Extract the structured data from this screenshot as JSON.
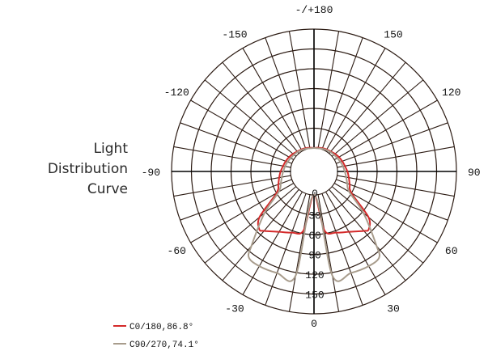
{
  "side_label": [
    "Light",
    "Distribution",
    "Curve"
  ],
  "chart_data": {
    "type": "polar-line",
    "title": "",
    "angle_labels": [
      {
        "angle": 180,
        "text": "-/+180"
      },
      {
        "angle": -150,
        "text": "-150"
      },
      {
        "angle": 150,
        "text": "150"
      },
      {
        "angle": -120,
        "text": "-120"
      },
      {
        "angle": 120,
        "text": "120"
      },
      {
        "angle": -90,
        "text": "-90"
      },
      {
        "angle": 90,
        "text": "90"
      },
      {
        "angle": -60,
        "text": "-60"
      },
      {
        "angle": 60,
        "text": "60"
      },
      {
        "angle": -30,
        "text": "-30"
      },
      {
        "angle": 30,
        "text": "30"
      },
      {
        "angle": 0,
        "text": "0"
      }
    ],
    "radial_ticks": [
      0,
      30,
      60,
      90,
      120,
      150
    ],
    "rlim": [
      0,
      180
    ],
    "spoke_step_deg": 10,
    "grid": true,
    "series": [
      {
        "name": "C0/180,86.8°",
        "color": "#d42a2a",
        "angles": [
          0,
          10,
          20,
          30,
          40,
          43.4,
          50,
          60,
          70,
          80,
          90,
          100,
          110,
          120,
          130,
          140,
          150,
          160,
          170,
          180
        ],
        "values": [
          0,
          55,
          63,
          70,
          82,
          85,
          72,
          30,
          22,
          18,
          15,
          12,
          10,
          8,
          6,
          4,
          3,
          2,
          1,
          0
        ],
        "symmetric": true
      },
      {
        "name": "C90/270,74.1°",
        "color": "#a89c8c",
        "angles": [
          0,
          10,
          20,
          30,
          37,
          40,
          50,
          60,
          70,
          80,
          90,
          100,
          110,
          120,
          130,
          140,
          150,
          160,
          170,
          180
        ],
        "values": [
          0,
          125,
          128,
          130,
          128,
          112,
          62,
          26,
          18,
          14,
          11,
          9,
          7,
          5,
          4,
          3,
          2,
          1,
          0,
          0
        ],
        "symmetric": true
      }
    ],
    "legend": "bottom-left"
  }
}
